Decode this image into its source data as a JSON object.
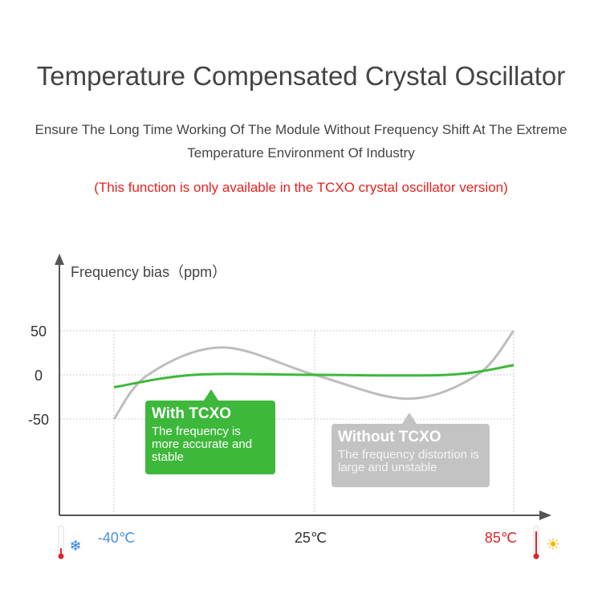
{
  "header": {
    "title": "Temperature Compensated Crystal Oscillator",
    "subtitle_line1": "Ensure The Long Time Working Of The Module Without Frequency Shift At The Extreme",
    "subtitle_line2": "Temperature Environment Of Industry",
    "note": "(This function is only available in the TCXO crystal oscillator version)"
  },
  "chart_data": {
    "type": "line",
    "ylabel": "Frequency bias（ppm）",
    "yticks": [
      "50",
      "0",
      "-50"
    ],
    "xticks": [
      {
        "label": "-40℃",
        "value": -40,
        "color": "#4a90e2"
      },
      {
        "label": "25℃",
        "value": 25,
        "color": "#333333"
      },
      {
        "label": "85℃",
        "value": 85,
        "color": "#d9262b"
      }
    ],
    "xlim": [
      -40,
      85
    ],
    "ylim": [
      -50,
      50
    ],
    "grid": true,
    "series": [
      {
        "name": "Without TCXO",
        "color": "#bdbdbd",
        "x": [
          -40,
          -29,
          -5,
          25,
          53,
          74,
          85
        ],
        "y": [
          -50,
          0,
          31,
          0,
          -27,
          0,
          50
        ]
      },
      {
        "name": "With TCXO",
        "color": "#3db83a",
        "x": [
          -40,
          -14,
          25,
          65,
          85
        ],
        "y": [
          -14,
          0,
          0,
          0,
          11
        ]
      }
    ],
    "annotations": [
      {
        "title": "With TCXO",
        "text": "The frequency is more accurate and stable",
        "color": "#3db83a"
      },
      {
        "title": "Without TCXO",
        "text": "The frequency distortion is large and unstable",
        "color": "#c3c3c3"
      }
    ],
    "icons": [
      "thermometer-cold-icon",
      "snowflake-icon",
      "thermometer-hot-icon",
      "sun-icon"
    ]
  }
}
